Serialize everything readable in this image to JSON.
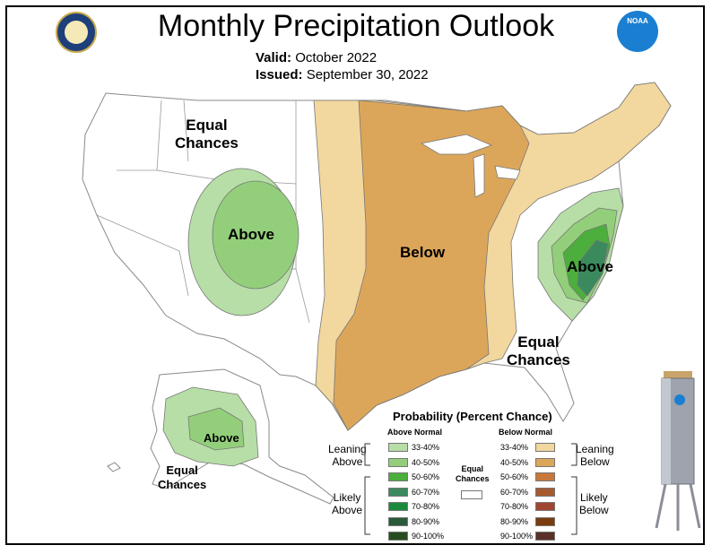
{
  "title": "Monthly Precipitation Outlook",
  "valid_label": "Valid:",
  "valid_value": "October 2022",
  "issued_label": "Issued:",
  "issued_value": "September 30, 2022",
  "map_labels": {
    "ec_west_1": "Equal",
    "ec_west_2": "Chances",
    "above_west": "Above",
    "below_central": "Below",
    "above_east": "Above",
    "ec_se_1": "Equal",
    "ec_se_2": "Chances",
    "above_alaska": "Above",
    "ec_alaska_1": "Equal",
    "ec_alaska_2": "Chances"
  },
  "legend": {
    "title": "Probability (Percent Chance)",
    "above_header": "Above Normal",
    "below_header": "Below Normal",
    "equal_1": "Equal",
    "equal_2": "Chances",
    "leaning_above_1": "Leaning",
    "leaning_above_2": "Above",
    "likely_above_1": "Likely",
    "likely_above_2": "Above",
    "leaning_below_1": "Leaning",
    "leaning_below_2": "Below",
    "likely_below_1": "Likely",
    "likely_below_2": "Below",
    "above": [
      {
        "label": "33-40%",
        "color": "#b7dea6"
      },
      {
        "label": "40-50%",
        "color": "#93cf7a"
      },
      {
        "label": "50-60%",
        "color": "#4cae3c"
      },
      {
        "label": "60-70%",
        "color": "#3a8a5e"
      },
      {
        "label": "70-80%",
        "color": "#1c8a3c"
      },
      {
        "label": "80-90%",
        "color": "#2a5a3a"
      },
      {
        "label": "90-100%",
        "color": "#274d1e"
      }
    ],
    "below": [
      {
        "label": "33-40%",
        "color": "#f2d79e"
      },
      {
        "label": "40-50%",
        "color": "#dca65a"
      },
      {
        "label": "50-60%",
        "color": "#c8773a"
      },
      {
        "label": "60-70%",
        "color": "#a65a2e"
      },
      {
        "label": "70-80%",
        "color": "#a04630"
      },
      {
        "label": "80-90%",
        "color": "#7a3c0e"
      },
      {
        "label": "90-100%",
        "color": "#5a3028"
      }
    ]
  },
  "logo_text": "NOAA"
}
